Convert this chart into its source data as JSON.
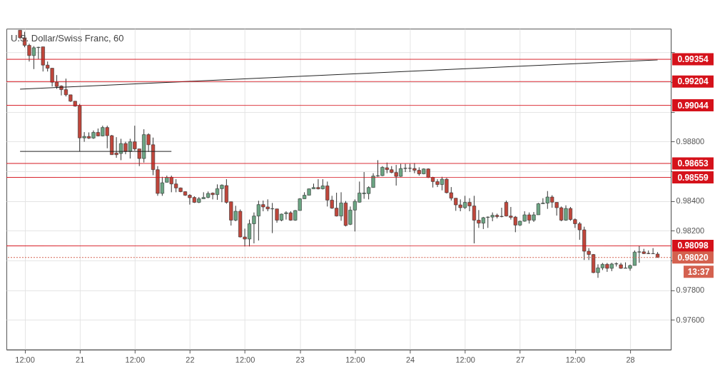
{
  "chart_data": {
    "type": "candlestick",
    "title": "U.S. Dollar/Swiss Franc, 60",
    "categories": [
      null,
      "12:00",
      null,
      null,
      null,
      null,
      null,
      null,
      null,
      null,
      null,
      null,
      null,
      "21",
      null,
      null,
      null,
      null,
      null,
      null,
      null,
      null,
      null,
      null,
      null,
      "12:00",
      null,
      null,
      null,
      null,
      null,
      null,
      null,
      null,
      null,
      null,
      null,
      "22",
      null,
      null,
      null,
      null,
      null,
      null,
      null,
      null,
      null,
      null,
      null,
      "12:00",
      null,
      null,
      null,
      null,
      null,
      null,
      null,
      null,
      null,
      null,
      null,
      "23",
      null,
      null,
      null,
      null,
      null,
      null,
      null,
      null,
      null,
      null,
      null,
      "12:00",
      null,
      null,
      null,
      null,
      null,
      null,
      null,
      null,
      null,
      null,
      null,
      "24",
      null,
      null,
      null,
      null,
      null,
      null,
      null,
      null,
      null,
      null,
      null,
      "12:00",
      null,
      null,
      null,
      null,
      null,
      null,
      null,
      null,
      null,
      null,
      null,
      "27",
      null,
      null,
      null,
      null,
      null,
      null,
      null,
      null,
      null,
      null,
      null,
      "12:00",
      null,
      null,
      null,
      null,
      null,
      null,
      null,
      null,
      null,
      null,
      null,
      "28",
      null,
      null,
      null,
      null,
      null,
      null
    ],
    "ohlc": [
      [
        0.9955,
        0.9955,
        0.99491,
        0.99499
      ],
      [
        0.99499,
        0.99539,
        0.99435,
        0.99448
      ],
      [
        0.99448,
        0.99459,
        0.99339,
        0.99379
      ],
      [
        0.99379,
        0.99443,
        0.99288,
        0.99432
      ],
      [
        0.99433,
        0.99438,
        0.99355,
        0.99435
      ],
      [
        0.99438,
        0.99438,
        0.99272,
        0.99315
      ],
      [
        0.99315,
        0.99339,
        0.99272,
        0.99294
      ],
      [
        0.99294,
        0.99294,
        0.99171,
        0.992
      ],
      [
        0.992,
        0.99248,
        0.99155,
        0.99171
      ],
      [
        0.99174,
        0.99179,
        0.99111,
        0.9915
      ],
      [
        0.9915,
        0.99224,
        0.99104,
        0.99115
      ],
      [
        0.99115,
        0.99115,
        0.99067,
        0.99072
      ],
      [
        0.99072,
        0.99072,
        0.99035,
        0.99039
      ],
      [
        0.99041,
        0.99054,
        0.98734,
        0.98825
      ],
      [
        0.98825,
        0.98864,
        0.98799,
        0.98835
      ],
      [
        0.98835,
        0.98862,
        0.98818,
        0.98823
      ],
      [
        0.98824,
        0.98875,
        0.98818,
        0.98862
      ],
      [
        0.98862,
        0.98888,
        0.98835,
        0.98838
      ],
      [
        0.98838,
        0.98907,
        0.98835,
        0.98895
      ],
      [
        0.98895,
        0.98907,
        0.98755,
        0.9884
      ],
      [
        0.9884,
        0.98845,
        0.98712,
        0.98712
      ],
      [
        0.98723,
        0.9883,
        0.98691,
        0.98712
      ],
      [
        0.9872,
        0.98819,
        0.98675,
        0.98787
      ],
      [
        0.98787,
        0.98799,
        0.98715,
        0.98734
      ],
      [
        0.98734,
        0.98819,
        0.98686,
        0.98799
      ],
      [
        0.98799,
        0.98907,
        0.98739,
        0.98751
      ],
      [
        0.98751,
        0.98751,
        0.98635,
        0.98686
      ],
      [
        0.98686,
        0.98883,
        0.98659,
        0.98847
      ],
      [
        0.98847,
        0.98856,
        0.98731,
        0.98779
      ],
      [
        0.98779,
        0.98827,
        0.98574,
        0.98611
      ],
      [
        0.98611,
        0.98635,
        0.98435,
        0.98451
      ],
      [
        0.98451,
        0.98563,
        0.98435,
        0.98523
      ],
      [
        0.98526,
        0.98571,
        0.98526,
        0.98559
      ],
      [
        0.9856,
        0.98571,
        0.98459,
        0.98515
      ],
      [
        0.98515,
        0.98547,
        0.98459,
        0.98488
      ],
      [
        0.98488,
        0.98491,
        0.98459,
        0.98463
      ],
      [
        0.98463,
        0.98465,
        0.98435,
        0.98439
      ],
      [
        0.98439,
        0.98446,
        0.98376,
        0.98422
      ],
      [
        0.98424,
        0.98432,
        0.98387,
        0.98391
      ],
      [
        0.98391,
        0.98427,
        0.98386,
        0.98415
      ],
      [
        0.98415,
        0.98459,
        0.98415,
        0.98424
      ],
      [
        0.98424,
        0.98464,
        0.98419,
        0.98451
      ],
      [
        0.98453,
        0.98458,
        0.98411,
        0.98443
      ],
      [
        0.98443,
        0.98512,
        0.98408,
        0.98483
      ],
      [
        0.98483,
        0.98512,
        0.98392,
        0.98507
      ],
      [
        0.98504,
        0.98547,
        0.98382,
        0.98391
      ],
      [
        0.98395,
        0.98395,
        0.98235,
        0.98271
      ],
      [
        0.98271,
        0.98368,
        0.98264,
        0.98331
      ],
      [
        0.98331,
        0.98343,
        0.98155,
        0.98158
      ],
      [
        0.98158,
        0.98214,
        0.98094,
        0.98144
      ],
      [
        0.98144,
        0.98275,
        0.98094,
        0.98247
      ],
      [
        0.98247,
        0.98323,
        0.98115,
        0.98299
      ],
      [
        0.98299,
        0.98402,
        0.98134,
        0.98376
      ],
      [
        0.98376,
        0.98403,
        0.98331,
        0.9836
      ],
      [
        0.9836,
        0.98411,
        0.98331,
        0.98347
      ],
      [
        0.98347,
        0.98387,
        0.98184,
        0.98349
      ],
      [
        0.98347,
        0.98347,
        0.98254,
        0.98271
      ],
      [
        0.98271,
        0.98315,
        0.98264,
        0.98312
      ],
      [
        0.98315,
        0.98331,
        0.98275,
        0.98321
      ],
      [
        0.98321,
        0.98331,
        0.98267,
        0.98271
      ],
      [
        0.98271,
        0.98339,
        0.98267,
        0.98336
      ],
      [
        0.98336,
        0.98419,
        0.98336,
        0.98415
      ],
      [
        0.98415,
        0.98459,
        0.98415,
        0.98439
      ],
      [
        0.98439,
        0.98484,
        0.98437,
        0.98482
      ],
      [
        0.98482,
        0.98517,
        0.98482,
        0.98491
      ],
      [
        0.98491,
        0.98547,
        0.98478,
        0.98482
      ],
      [
        0.98482,
        0.98547,
        0.98478,
        0.98502
      ],
      [
        0.98502,
        0.98531,
        0.98363,
        0.98406
      ],
      [
        0.98406,
        0.98435,
        0.98347,
        0.98352
      ],
      [
        0.98352,
        0.98456,
        0.98296,
        0.98299
      ],
      [
        0.98299,
        0.98459,
        0.98267,
        0.98387
      ],
      [
        0.98387,
        0.984,
        0.98229,
        0.98235
      ],
      [
        0.98243,
        0.98363,
        0.98238,
        0.98339
      ],
      [
        0.98339,
        0.98411,
        0.98195,
        0.98398
      ],
      [
        0.98392,
        0.98531,
        0.98389,
        0.98454
      ],
      [
        0.98449,
        0.98595,
        0.98415,
        0.98454
      ],
      [
        0.9845,
        0.98499,
        0.98411,
        0.98491
      ],
      [
        0.98491,
        0.98587,
        0.98491,
        0.98568
      ],
      [
        0.98568,
        0.98675,
        0.98563,
        0.98571
      ],
      [
        0.98571,
        0.98635,
        0.98568,
        0.98627
      ],
      [
        0.98624,
        0.98659,
        0.98587,
        0.98611
      ],
      [
        0.98611,
        0.98635,
        0.98587,
        0.98592
      ],
      [
        0.98592,
        0.98643,
        0.98504,
        0.98566
      ],
      [
        0.98566,
        0.98651,
        0.98563,
        0.98619
      ],
      [
        0.98619,
        0.98651,
        0.98595,
        0.98621
      ],
      [
        0.98621,
        0.98651,
        0.98595,
        0.9862
      ],
      [
        0.98619,
        0.98655,
        0.98587,
        0.98607
      ],
      [
        0.98607,
        0.98627,
        0.98571,
        0.98583
      ],
      [
        0.98583,
        0.9862,
        0.9858,
        0.98616
      ],
      [
        0.98616,
        0.9862,
        0.98555,
        0.98559
      ],
      [
        0.98559,
        0.98563,
        0.98491,
        0.98531
      ],
      [
        0.98531,
        0.98547,
        0.98494,
        0.98511
      ],
      [
        0.98511,
        0.98563,
        0.98472,
        0.98547
      ],
      [
        0.98547,
        0.98555,
        0.98451,
        0.98456
      ],
      [
        0.98456,
        0.98494,
        0.98403,
        0.98419
      ],
      [
        0.98419,
        0.98419,
        0.98334,
        0.98374
      ],
      [
        0.98374,
        0.98411,
        0.98331,
        0.98355
      ],
      [
        0.98355,
        0.98435,
        0.98347,
        0.98391
      ],
      [
        0.98391,
        0.98419,
        0.98331,
        0.98367
      ],
      [
        0.98367,
        0.98435,
        0.98115,
        0.98271
      ],
      [
        0.98271,
        0.98339,
        0.98219,
        0.98251
      ],
      [
        0.98251,
        0.98293,
        0.98211,
        0.98288
      ],
      [
        0.9829,
        0.98296,
        0.98219,
        0.98292
      ],
      [
        0.98292,
        0.98323,
        0.98264,
        0.98304
      ],
      [
        0.98304,
        0.98315,
        0.98283,
        0.98295
      ],
      [
        0.98297,
        0.98355,
        0.9829,
        0.98295
      ],
      [
        0.98391,
        0.98403,
        0.98296,
        0.98299
      ],
      [
        0.98299,
        0.9836,
        0.98275,
        0.9829
      ],
      [
        0.98292,
        0.98299,
        0.9819,
        0.98238
      ],
      [
        0.98238,
        0.98267,
        0.98232,
        0.98264
      ],
      [
        0.98264,
        0.98331,
        0.98261,
        0.98307
      ],
      [
        0.98307,
        0.98323,
        0.98248,
        0.98271
      ],
      [
        0.98271,
        0.98326,
        0.98259,
        0.98307
      ],
      [
        0.98307,
        0.98387,
        0.98307,
        0.98382
      ],
      [
        0.98382,
        0.98419,
        0.98382,
        0.98386
      ],
      [
        0.98386,
        0.98467,
        0.98347,
        0.98427
      ],
      [
        0.98427,
        0.98439,
        0.98355,
        0.98392
      ],
      [
        0.98391,
        0.98391,
        0.98302,
        0.98355
      ],
      [
        0.98355,
        0.98363,
        0.98264,
        0.98271
      ],
      [
        0.98271,
        0.98371,
        0.98267,
        0.9835
      ],
      [
        0.9835,
        0.9836,
        0.98267,
        0.98275
      ],
      [
        0.98275,
        0.98283,
        0.98219,
        0.98247
      ],
      [
        0.98247,
        0.98259,
        0.98139,
        0.98206
      ],
      [
        0.98206,
        0.98227,
        0.98003,
        0.98062
      ],
      [
        0.98062,
        0.98083,
        0.98003,
        0.9804
      ],
      [
        0.9804,
        0.98043,
        0.97915,
        0.97918
      ],
      [
        0.97918,
        0.97974,
        0.97883,
        0.9795
      ],
      [
        0.9795,
        0.97983,
        0.97935,
        0.97974
      ],
      [
        0.97974,
        0.97983,
        0.97923,
        0.97947
      ],
      [
        0.97947,
        0.97984,
        0.97928,
        0.97976
      ],
      [
        0.97976,
        0.97987,
        0.97959,
        0.97978
      ],
      [
        0.97971,
        0.97984,
        0.97944,
        0.97947
      ],
      [
        0.97947,
        0.97987,
        0.97947,
        0.97949
      ],
      [
        0.97947,
        0.97972,
        0.97931,
        0.97966
      ],
      [
        0.97966,
        0.98067,
        0.97966,
        0.98056
      ],
      [
        0.98056,
        0.98099,
        0.97984,
        0.98058
      ],
      [
        0.98058,
        0.98078,
        0.98043,
        0.98046
      ],
      [
        0.98048,
        0.98067,
        0.98043,
        0.98046
      ],
      [
        0.98046,
        0.98083,
        0.98043,
        0.98045
      ],
      [
        0.98043,
        0.98056,
        0.9802,
        0.9802
      ]
    ],
    "colors": [
      "#c0463b",
      "#c0463b",
      "#c0463b",
      "#6ba583",
      "#6ba583",
      "#c0463b",
      "#c0463b",
      "#c0463b",
      "#c0463b",
      "#c0463b",
      "#c0463b",
      "#c0463b",
      "#c0463b",
      "#c0463b",
      "#6ba583",
      "#c0463b",
      "#6ba583",
      "#c0463b",
      "#6ba583",
      "#c0463b",
      "#c0463b",
      "#c0463b",
      "#6ba583",
      "#c0463b",
      "#6ba583",
      "#c0463b",
      "#c0463b",
      "#6ba583",
      "#c0463b",
      "#c0463b",
      "#c0463b",
      "#6ba583",
      "#6ba583",
      "#c0463b",
      "#c0463b",
      "#c0463b",
      "#c0463b",
      "#c0463b",
      "#c0463b",
      "#6ba583",
      "#6ba583",
      "#6ba583",
      "#c0463b",
      "#6ba583",
      "#6ba583",
      "#c0463b",
      "#c0463b",
      "#6ba583",
      "#c0463b",
      "#c0463b",
      "#6ba583",
      "#6ba583",
      "#6ba583",
      "#c0463b",
      "#c0463b",
      "#6ba583",
      "#c0463b",
      "#6ba583",
      "#6ba583",
      "#c0463b",
      "#6ba583",
      "#6ba583",
      "#6ba583",
      "#6ba583",
      "#6ba583",
      "#c0463b",
      "#6ba583",
      "#c0463b",
      "#c0463b",
      "#c0463b",
      "#6ba583",
      "#c0463b",
      "#6ba583",
      "#6ba583",
      "#6ba583",
      "#6ba583",
      "#6ba583",
      "#6ba583",
      "#6ba583",
      "#6ba583",
      "#c0463b",
      "#c0463b",
      "#c0463b",
      "#6ba583",
      "#6ba583",
      "#c0463b",
      "#c0463b",
      "#c0463b",
      "#6ba583",
      "#c0463b",
      "#c0463b",
      "#c0463b",
      "#6ba583",
      "#c0463b",
      "#c0463b",
      "#c0463b",
      "#c0463b",
      "#6ba583",
      "#c0463b",
      "#c0463b",
      "#c0463b",
      "#6ba583",
      "#6ba583",
      "#6ba583",
      "#c0463b",
      "#c0463b",
      "#c0463b",
      "#c0463b",
      "#c0463b",
      "#6ba583",
      "#6ba583",
      "#c0463b",
      "#6ba583",
      "#6ba583",
      "#6ba583",
      "#6ba583",
      "#c0463b",
      "#c0463b",
      "#c0463b",
      "#6ba583",
      "#c0463b",
      "#c0463b",
      "#c0463b",
      "#c0463b",
      "#c0463b",
      "#c0463b",
      "#6ba583",
      "#6ba583",
      "#c0463b",
      "#6ba583",
      "#6ba583",
      "#c0463b",
      "#6ba583",
      "#6ba583",
      "#6ba583",
      "#6ba583",
      "#c0463b",
      "#c0463b",
      "#c0463b",
      "#c0463b"
    ],
    "series": [
      {
        "type": "line",
        "color": "#222222",
        "values": [
          0.99153,
          null,
          null,
          null,
          null,
          null,
          null,
          null,
          null,
          null,
          null,
          null,
          null,
          null,
          null,
          null,
          null,
          null,
          null,
          null,
          null,
          null,
          null,
          null,
          null,
          null,
          null,
          null,
          null,
          null,
          null,
          null,
          null,
          null,
          null,
          null,
          null,
          null,
          null,
          null,
          null,
          null,
          null,
          null,
          null,
          null,
          null,
          null,
          null,
          null,
          null,
          null,
          null,
          null,
          null,
          null,
          null,
          null,
          null,
          null,
          null,
          null,
          null,
          null,
          null,
          null,
          null,
          null,
          null,
          null,
          null,
          null,
          null,
          null,
          null,
          null,
          null,
          null,
          null,
          null,
          null,
          null,
          null,
          null,
          null,
          null,
          null,
          null,
          null,
          null,
          null,
          null,
          null,
          null,
          null,
          null,
          null,
          null,
          null,
          null,
          null,
          null,
          null,
          null,
          null,
          null,
          null,
          null,
          null,
          null,
          null,
          null,
          null,
          null,
          null,
          null,
          null,
          null,
          null,
          null,
          null,
          null,
          null,
          null,
          null,
          null,
          null,
          null,
          null,
          null,
          null,
          null,
          null,
          null,
          null,
          null,
          null,
          null,
          null,
          0.9935
        ]
      },
      {
        "type": "line",
        "color": "#222222",
        "values": [
          0.98734,
          null,
          null,
          null,
          null,
          null,
          null,
          null,
          null,
          null,
          null,
          null,
          null,
          null,
          null,
          null,
          null,
          null,
          null,
          null,
          null,
          null,
          null,
          null,
          null,
          null,
          null,
          null,
          null,
          null,
          null,
          null,
          null,
          0.98734,
          null,
          null,
          null,
          null,
          null,
          null,
          null,
          null,
          null,
          null,
          null,
          null,
          null,
          null,
          null,
          null,
          null,
          null,
          null,
          null,
          null,
          null,
          null,
          null,
          null,
          null,
          null,
          null,
          null,
          null,
          null,
          null,
          null,
          null,
          null,
          null,
          null,
          null,
          null,
          null,
          null,
          null,
          null,
          null,
          null,
          null,
          null,
          null,
          null,
          null,
          null,
          null,
          null,
          null,
          null,
          null,
          null,
          null,
          null,
          null,
          null,
          null,
          null,
          null,
          null,
          null,
          null,
          null,
          null,
          null,
          null,
          null,
          null,
          null,
          null,
          null,
          null,
          null,
          null,
          null,
          null,
          null,
          null,
          null,
          null,
          null,
          null,
          null,
          null,
          null,
          null,
          null,
          null,
          null,
          null,
          null,
          null,
          null,
          null,
          null,
          null,
          null,
          null,
          null,
          null,
          null
        ]
      }
    ],
    "ylim": [
      0.974,
      0.9956
    ],
    "yticks": [
      {
        "value": 0.976,
        "label": "0.97600"
      },
      {
        "value": 0.978,
        "label": "0.97800"
      },
      {
        "value": 0.98,
        "label": null
      },
      {
        "value": 0.982,
        "label": "0.98200"
      },
      {
        "value": 0.984,
        "label": "0.98400"
      },
      {
        "value": 0.986,
        "label": null
      },
      {
        "value": 0.988,
        "label": "0.98800"
      },
      {
        "value": 0.99,
        "label": null
      },
      {
        "value": 0.992,
        "label": null
      },
      {
        "value": 0.994,
        "label": null
      }
    ],
    "ref_lines": [
      {
        "axis": "y",
        "value": 0.99354,
        "label": "0.99354",
        "color": "#d5121b"
      },
      {
        "axis": "y",
        "value": 0.99204,
        "label": "0.99204",
        "color": "#d5121b"
      },
      {
        "axis": "y",
        "value": 0.99044,
        "label": "0.99044",
        "color": "#d5121b"
      },
      {
        "axis": "y",
        "value": 0.98653,
        "label": "0.98653",
        "color": "#d5121b"
      },
      {
        "axis": "y",
        "value": 0.98559,
        "label": "0.98559",
        "color": "#d5121b"
      },
      {
        "axis": "y",
        "value": 0.98098,
        "label": "0.98098",
        "color": "#d5121b"
      },
      {
        "axis": "y",
        "value": 0.9802,
        "label": "0.98020",
        "color": "#d4614f",
        "line_style": "dotted"
      }
    ],
    "annotations": [
      "13:37"
    ],
    "grid": true
  }
}
